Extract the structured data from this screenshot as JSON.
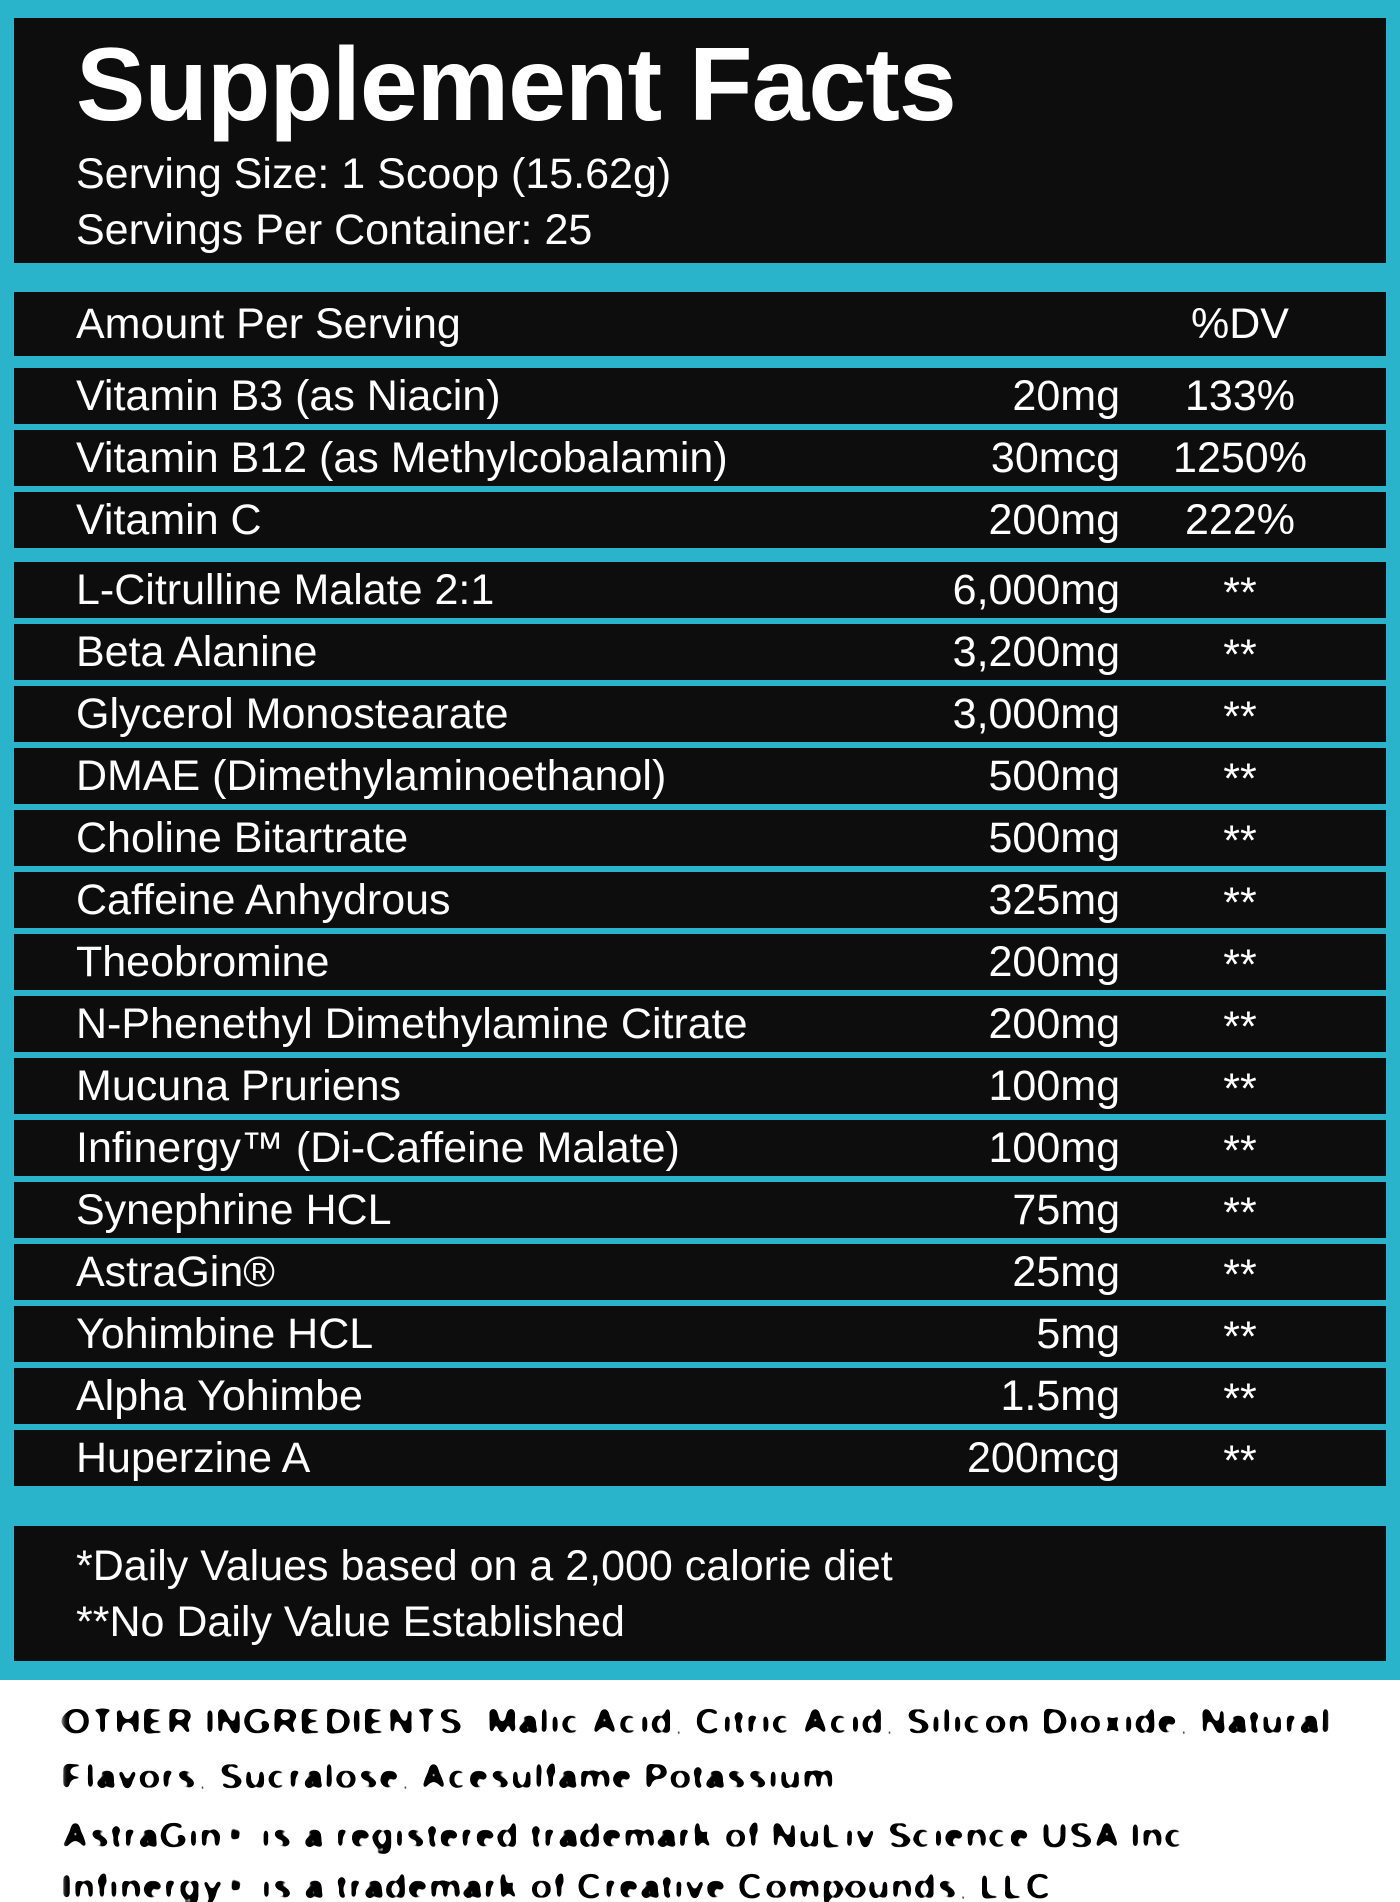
{
  "supplement_label": {
    "title": "Supplement Facts",
    "serving_size": "Serving Size: 1 Scoop (15.62g)",
    "servings_per_container": "Servings Per Container: 25",
    "columns": {
      "amount_header": "Amount Per Serving",
      "dv_header": "%DV"
    },
    "ingredients": [
      {
        "name": "Vitamin B3 (as Niacin)",
        "amount": "20mg",
        "dv": "133%"
      },
      {
        "name": "Vitamin B12 (as Methylcobalamin)",
        "amount": "30mcg",
        "dv": "1250%"
      },
      {
        "name": "Vitamin C",
        "amount": "200mg",
        "dv": "222%",
        "group_end": true
      },
      {
        "name": "L-Citrulline Malate 2:1",
        "amount": "6,000mg",
        "dv": "**"
      },
      {
        "name": "Beta Alanine",
        "amount": "3,200mg",
        "dv": "**"
      },
      {
        "name": "Glycerol Monostearate",
        "amount": "3,000mg",
        "dv": "**"
      },
      {
        "name": "DMAE (Dimethylaminoethanol)",
        "amount": "500mg",
        "dv": "**"
      },
      {
        "name": "Choline Bitartrate",
        "amount": "500mg",
        "dv": "**"
      },
      {
        "name": "Caffeine Anhydrous",
        "amount": "325mg",
        "dv": "**"
      },
      {
        "name": "Theobromine",
        "amount": "200mg",
        "dv": "**"
      },
      {
        "name": "N-Phenethyl Dimethylamine Citrate",
        "amount": "200mg",
        "dv": "**"
      },
      {
        "name": "Mucuna Pruriens",
        "amount": "100mg",
        "dv": "**"
      },
      {
        "name": "Infinergy™ (Di-Caffeine Malate)",
        "amount": "100mg",
        "dv": "**"
      },
      {
        "name": "Synephrine HCL",
        "amount": "75mg",
        "dv": "**"
      },
      {
        "name": "AstraGin®",
        "amount": "25mg",
        "dv": "**"
      },
      {
        "name": "Yohimbine HCL",
        "amount": "5mg",
        "dv": "**"
      },
      {
        "name": "Alpha Yohimbe",
        "amount": "1.5mg",
        "dv": "**"
      },
      {
        "name": "Huperzine A",
        "amount": "200mcg",
        "dv": "**"
      }
    ],
    "footnotes": {
      "line1": "*Daily Values based on a 2,000 calorie diet",
      "line2": "**No Daily Value Established"
    },
    "fine_print": {
      "other_ingredients_line1": "OTHER INGREDIENTS: Malic Acid, Citric Acid, Silicon Dioxide, Natural",
      "other_ingredients_line2": "Flavors, Sucralose, Acesulfame Potassium",
      "trademark_line1": "AstraGin® is a registered trademark of NuLiv Science USA Inc.",
      "trademark_line2": "Infinergy® is a trademark of Creative Compounds, LLC."
    }
  },
  "colors": {
    "accent_cyan": "#2ab4cb",
    "panel_black": "#0d0d0d",
    "text_white": "#ffffff",
    "fine_print_black": "#000000"
  }
}
